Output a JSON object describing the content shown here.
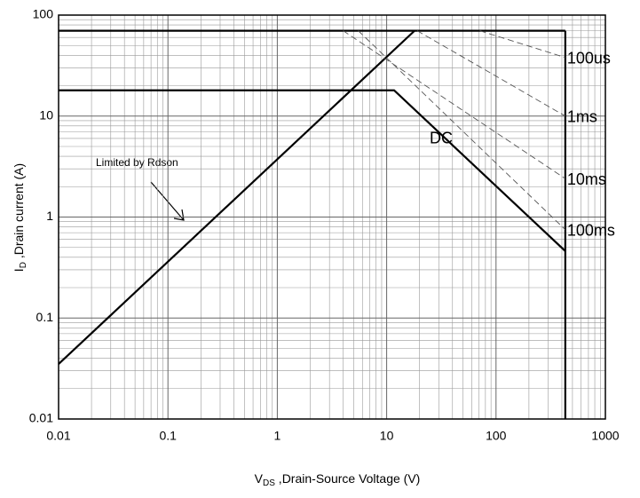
{
  "chart_data": {
    "type": "line",
    "xlabel": [
      "V",
      "DS",
      " ,Drain-Source Voltage (V)"
    ],
    "ylabel": [
      "I",
      "D",
      " ,Drain current (A)"
    ],
    "xscale": "log",
    "yscale": "log",
    "xlim": [
      0.01,
      1000
    ],
    "ylim": [
      0.01,
      100
    ],
    "xticks": [
      0.01,
      0.1,
      1,
      10,
      100,
      1000
    ],
    "yticks": [
      0.01,
      0.1,
      1,
      10,
      100
    ],
    "grid": true,
    "minor_grid": true,
    "series": [
      {
        "color": "#000000",
        "style": "solid",
        "x": [
          0.01,
          18
        ],
        "values": [
          0.035,
          70
        ]
      },
      {
        "color": "#000000",
        "style": "solid",
        "x": [
          0.01,
          430
        ],
        "values": [
          70,
          70
        ]
      },
      {
        "name": "DC",
        "color": "#000000",
        "style": "solid",
        "x": [
          0.01,
          11.7,
          430
        ],
        "values": [
          18,
          18,
          0.46
        ]
      },
      {
        "color": "#000000",
        "style": "solid",
        "x": [
          430,
          430
        ],
        "values": [
          70,
          0.01
        ]
      },
      {
        "name": "100us",
        "color": "#555555",
        "style": "dashed",
        "x": [
          71,
          430
        ],
        "values": [
          70,
          38
        ]
      },
      {
        "name": "1ms",
        "color": "#555555",
        "style": "dashed",
        "x": [
          19,
          430
        ],
        "values": [
          70,
          10
        ]
      },
      {
        "name": "10ms",
        "color": "#555555",
        "style": "dashed",
        "x": [
          4,
          430
        ],
        "values": [
          70,
          2.4
        ]
      },
      {
        "name": "100ms",
        "color": "#555555",
        "style": "dashed",
        "x": [
          5.5,
          430
        ],
        "values": [
          70,
          0.75
        ]
      }
    ],
    "annotations": [
      {
        "text": "Limited by Rdson"
      }
    ]
  }
}
